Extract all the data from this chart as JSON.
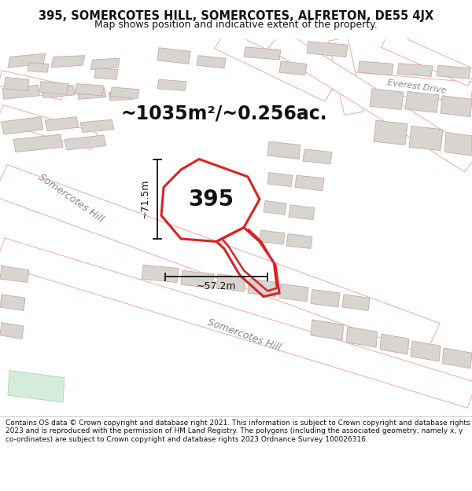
{
  "title_line1": "395, SOMERCOTES HILL, SOMERCOTES, ALFRETON, DE55 4JX",
  "title_line2": "Map shows position and indicative extent of the property.",
  "area_text": "~1035m²/~0.256ac.",
  "property_label": "395",
  "dim_vertical": "~71.5m",
  "dim_horizontal": "~57.2m",
  "footer_text": "Contains OS data © Crown copyright and database right 2021. This information is subject to Crown copyright and database rights 2023 and is reproduced with the permission of HM Land Registry. The polygons (including the associated geometry, namely x, y co-ordinates) are subject to Crown copyright and database rights 2023 Ordnance Survey 100026316.",
  "bg_color": "#f9f7f5",
  "road_outline_color": "#f0a8a8",
  "building_fill": "#d8d5d0",
  "building_outline": "#c8a8a8",
  "highlight_color": "#dd2222",
  "dim_line_color": "#111111",
  "text_color": "#111111",
  "road_label_color": "#888888",
  "footer_bg": "#ffffff",
  "title_bg": "#ffffff",
  "title_fontsize": 10.5,
  "subtitle_fontsize": 9,
  "area_fontsize": 17,
  "label_fontsize": 20,
  "dim_fontsize": 9,
  "road_label_fontsize": 9,
  "footer_fontsize": 6.5
}
